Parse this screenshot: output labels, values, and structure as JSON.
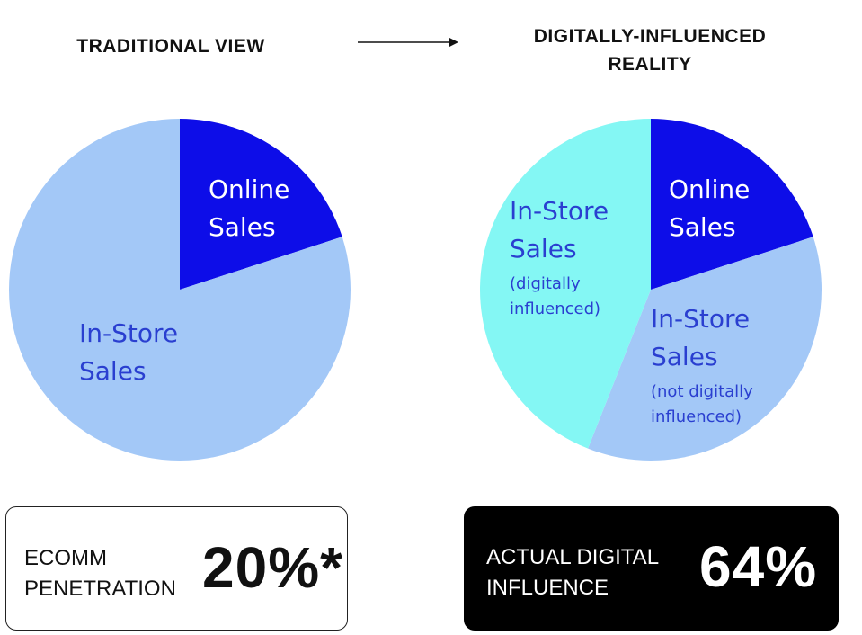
{
  "header": {
    "left": "TRADITIONAL VIEW",
    "right": "DIGITALLY-INFLUENCED REALITY"
  },
  "chart_data": [
    {
      "type": "pie",
      "categories": [
        "Online Sales",
        "In-Store Sales"
      ],
      "category_notes": [
        null,
        null
      ],
      "values": [
        20,
        80
      ],
      "colors": [
        "#0d0de8",
        "#a3c8f7"
      ]
    },
    {
      "type": "pie",
      "categories": [
        "Online Sales",
        "In-Store Sales",
        "In-Store Sales"
      ],
      "category_notes": [
        null,
        "(not digitally influenced)",
        "(digitally influenced)"
      ],
      "values": [
        20,
        36,
        44
      ],
      "colors": [
        "#0d0de8",
        "#a3c8f7",
        "#84f7f4"
      ]
    }
  ],
  "callouts": [
    {
      "label": "ECOMM PENETRATION",
      "value": "20%*"
    },
    {
      "label": "ACTUAL DIGITAL INFLUENCE",
      "value": "64%"
    }
  ]
}
